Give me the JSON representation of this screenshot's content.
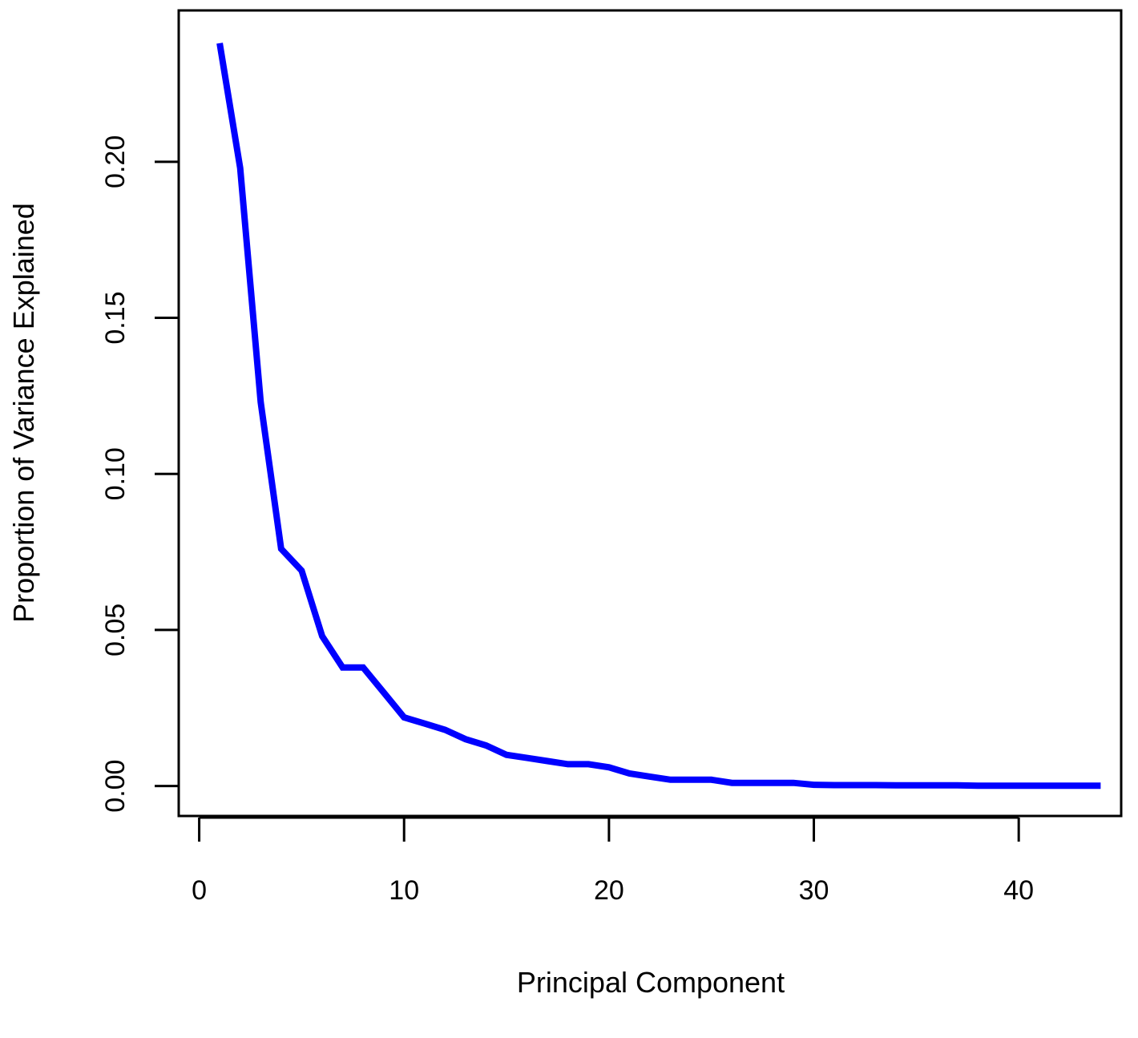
{
  "chart_data": {
    "type": "line",
    "title": "",
    "xlabel": "Principal Component",
    "ylabel": "Proportion of Variance Explained",
    "xlim": [
      -1,
      45
    ],
    "ylim": [
      -0.0096,
      0.2485
    ],
    "xticks": [
      0,
      10,
      20,
      30,
      40
    ],
    "xtick_labels": [
      "0",
      "10",
      "20",
      "30",
      "40"
    ],
    "yticks": [
      0.0,
      0.05,
      0.1,
      0.15,
      0.2
    ],
    "ytick_labels": [
      "0.00",
      "0.05",
      "0.10",
      "0.15",
      "0.20"
    ],
    "grid": false,
    "legend": "none",
    "line_color": "#0000ff",
    "series": [
      {
        "x": [
          1,
          2,
          3,
          4,
          5,
          6,
          7,
          8,
          9,
          10,
          11,
          12,
          13,
          14,
          15,
          16,
          17,
          18,
          19,
          20,
          21,
          22,
          23,
          24,
          25,
          26,
          27,
          28,
          29,
          30,
          31,
          32,
          33,
          34,
          35,
          36,
          37,
          38,
          39,
          40,
          41,
          42,
          43,
          44
        ],
        "values": [
          0.238,
          0.198,
          0.123,
          0.076,
          0.069,
          0.048,
          0.038,
          0.038,
          0.03,
          0.022,
          0.02,
          0.018,
          0.015,
          0.013,
          0.01,
          0.009,
          0.008,
          0.007,
          0.007,
          0.006,
          0.004,
          0.003,
          0.002,
          0.002,
          0.002,
          0.001,
          0.001,
          0.001,
          0.001,
          0.0004,
          0.0003,
          0.0003,
          0.0003,
          0.0002,
          0.0002,
          0.0002,
          0.0002,
          0.0001,
          0.0001,
          0.0001,
          0.0001,
          0.0001,
          0.0001,
          0.0001
        ]
      }
    ]
  }
}
